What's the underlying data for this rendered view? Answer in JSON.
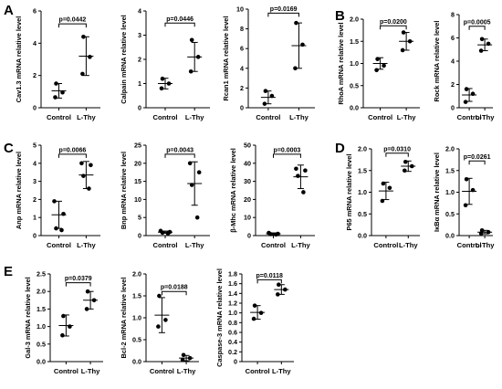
{
  "panel_letters": [
    "A",
    "B",
    "C",
    "D",
    "E"
  ],
  "chart_data": [
    {
      "type": "scatter",
      "panel": "A",
      "ylabel": "Cav1.3 mRNA relative level",
      "categories": [
        "Control",
        "L-Thy"
      ],
      "ylim": [
        0,
        6
      ],
      "yticks": [
        0,
        2,
        4,
        6
      ],
      "p_value": "p=0.0442",
      "series": [
        {
          "name": "Control",
          "points": [
            1.5,
            0.95,
            0.65
          ],
          "mean": 1.05,
          "sd": 0.45
        },
        {
          "name": "L-Thy",
          "points": [
            4.4,
            3.15,
            2.1
          ],
          "mean": 3.2,
          "sd": 1.2
        }
      ],
      "bracket_y": 5.2
    },
    {
      "type": "scatter",
      "panel": "A",
      "ylabel": "Calpain mRNA relative level",
      "categories": [
        "Control",
        "L-Thy"
      ],
      "ylim": [
        0,
        4
      ],
      "yticks": [
        0,
        1,
        2,
        3,
        4
      ],
      "p_value": "p=0.0446",
      "series": [
        {
          "name": "Control",
          "points": [
            1.2,
            1.0,
            0.8
          ],
          "mean": 1.0,
          "sd": 0.22
        },
        {
          "name": "L-Thy",
          "points": [
            2.8,
            2.1,
            1.5
          ],
          "mean": 2.1,
          "sd": 0.6
        }
      ],
      "bracket_y": 3.5
    },
    {
      "type": "scatter",
      "panel": "A",
      "ylabel": "Rcan1 mRNA relative level",
      "categories": [
        "Control",
        "L-Thy"
      ],
      "ylim": [
        0,
        10
      ],
      "yticks": [
        0,
        2,
        4,
        6,
        8,
        10
      ],
      "p_value": "p=0.0169",
      "series": [
        {
          "name": "Control",
          "points": [
            1.7,
            1.2,
            0.4
          ],
          "mean": 1.05,
          "sd": 0.65
        },
        {
          "name": "L-Thy",
          "points": [
            8.6,
            6.4,
            4.0
          ],
          "mean": 6.3,
          "sd": 2.3
        }
      ],
      "bracket_y": 9.6
    },
    {
      "type": "scatter",
      "panel": "B",
      "ylabel": "RhoA mRNA relative level",
      "categories": [
        "Control",
        "L-Thy"
      ],
      "ylim": [
        0,
        2.0
      ],
      "yticks": [
        0,
        0.5,
        1.0,
        1.5,
        2.0
      ],
      "ytick_labels": [
        "0.0",
        "0.5",
        "1.0",
        "1.5",
        "2.0"
      ],
      "p_value": "p=0.0200",
      "series": [
        {
          "name": "Control",
          "points": [
            1.1,
            0.95,
            0.85
          ],
          "mean": 1.0,
          "sd": 0.13
        },
        {
          "name": "L-Thy",
          "points": [
            1.7,
            1.5,
            1.3
          ],
          "mean": 1.5,
          "sd": 0.2
        }
      ],
      "bracket_y": 1.85
    },
    {
      "type": "scatter",
      "panel": "B",
      "ylabel": "Rock mRNA relative level",
      "categories": [
        "Control",
        "L-Thy"
      ],
      "ylim": [
        0,
        8
      ],
      "yticks": [
        0,
        2,
        4,
        6,
        8
      ],
      "p_value": "p=0.0005",
      "series": [
        {
          "name": "Control",
          "points": [
            1.6,
            1.2,
            0.5
          ],
          "mean": 1.1,
          "sd": 0.55
        },
        {
          "name": "L-Thy",
          "points": [
            5.9,
            5.5,
            4.9
          ],
          "mean": 5.4,
          "sd": 0.5
        }
      ],
      "bracket_y": 7.0
    },
    {
      "type": "scatter",
      "panel": "C",
      "ylabel": "Anp mRNA relative level",
      "categories": [
        "Control",
        "L-Thy"
      ],
      "ylim": [
        0,
        5
      ],
      "yticks": [
        0,
        1,
        2,
        3,
        4,
        5
      ],
      "p_value": "p=0.0066",
      "series": [
        {
          "name": "Control",
          "points": [
            1.9,
            1.2,
            0.4,
            0.3
          ],
          "mean": 1.15,
          "sd": 0.75
        },
        {
          "name": "L-Thy",
          "points": [
            4.0,
            3.9,
            3.3,
            2.6
          ],
          "mean": 3.35,
          "sd": 0.75
        }
      ],
      "bracket_y": 4.5
    },
    {
      "type": "scatter",
      "panel": "C",
      "ylabel": "Bnp mRNA relative level",
      "categories": [
        "Control",
        "L-Thy"
      ],
      "ylim": [
        0,
        25
      ],
      "yticks": [
        0,
        5,
        10,
        15,
        20,
        25
      ],
      "p_value": "p=0.0043",
      "series": [
        {
          "name": "Control",
          "points": [
            1.3,
            1.0,
            0.8,
            0.6
          ],
          "mean": 0.95,
          "sd": 0.3
        },
        {
          "name": "L-Thy",
          "points": [
            20.0,
            17.5,
            14.0,
            5.0
          ],
          "mean": 14.4,
          "sd": 6.0
        }
      ],
      "bracket_y": 22.5
    },
    {
      "type": "scatter",
      "panel": "C",
      "ylabel": "β-Mhc mRNA relative level",
      "categories": [
        "Control",
        "L-Thy"
      ],
      "ylim": [
        0,
        50
      ],
      "yticks": [
        0,
        10,
        20,
        30,
        40,
        50
      ],
      "p_value": "p=0.0003",
      "series": [
        {
          "name": "Control",
          "points": [
            1.5,
            1.0,
            0.8,
            0.6
          ],
          "mean": 1.0,
          "sd": 0.5
        },
        {
          "name": "L-Thy",
          "points": [
            37,
            36,
            33,
            24
          ],
          "mean": 32.5,
          "sd": 6.5
        }
      ],
      "bracket_y": 45
    },
    {
      "type": "scatter",
      "panel": "D",
      "ylabel": "P65 mRNA relative level",
      "categories": [
        "Control",
        "L-Thy"
      ],
      "ylim": [
        0,
        2.0
      ],
      "yticks": [
        0,
        0.5,
        1.0,
        1.5,
        2.0
      ],
      "ytick_labels": [
        "0.0",
        "0.5",
        "1.0",
        "1.5",
        "2.0"
      ],
      "p_value": "p=0.0310",
      "series": [
        {
          "name": "Control",
          "points": [
            1.2,
            1.1,
            0.8
          ],
          "mean": 1.03,
          "sd": 0.2
        },
        {
          "name": "L-Thy",
          "points": [
            1.7,
            1.6,
            1.5
          ],
          "mean": 1.6,
          "sd": 0.12
        }
      ],
      "bracket_y": 1.9
    },
    {
      "type": "scatter",
      "panel": "D",
      "ylabel": "IκBα mRNA relative level",
      "categories": [
        "Control",
        "L-Thy"
      ],
      "ylim": [
        0,
        2.0
      ],
      "yticks": [
        0,
        0.5,
        1.0,
        1.5,
        2.0
      ],
      "ytick_labels": [
        "0.0",
        "0.5",
        "1.0",
        "1.5",
        "2.0"
      ],
      "p_value": "p=0.0261",
      "series": [
        {
          "name": "Control",
          "points": [
            1.3,
            1.05,
            0.7
          ],
          "mean": 1.02,
          "sd": 0.3
        },
        {
          "name": "L-Thy",
          "points": [
            0.12,
            0.08,
            0.05
          ],
          "mean": 0.08,
          "sd": 0.04
        }
      ],
      "bracket_y": 1.72
    },
    {
      "type": "scatter",
      "panel": "E",
      "ylabel": "Gal-3 mRNA relative level",
      "categories": [
        "Control",
        "L-Thy"
      ],
      "ylim": [
        0,
        2.5
      ],
      "yticks": [
        0,
        0.5,
        1.0,
        1.5,
        2.0,
        2.5
      ],
      "ytick_labels": [
        "0.0",
        "0.5",
        "1.0",
        "1.5",
        "2.0",
        "2.5"
      ],
      "p_value": "p=0.0379",
      "series": [
        {
          "name": "Control",
          "points": [
            1.3,
            1.0,
            0.75
          ],
          "mean": 1.03,
          "sd": 0.3
        },
        {
          "name": "L-Thy",
          "points": [
            2.0,
            1.75,
            1.5
          ],
          "mean": 1.75,
          "sd": 0.25
        }
      ],
      "bracket_y": 2.25
    },
    {
      "type": "scatter",
      "panel": "E",
      "ylabel": "Bcl-2 mRNA relative level",
      "categories": [
        "Control",
        "L-Thy"
      ],
      "ylim": [
        0,
        2.0
      ],
      "yticks": [
        0,
        0.5,
        1.0,
        1.5,
        2.0
      ],
      "ytick_labels": [
        "0.0",
        "0.5",
        "1.0",
        "1.5",
        "2.0"
      ],
      "p_value": "p=0.0188",
      "series": [
        {
          "name": "Control",
          "points": [
            1.5,
            0.95,
            0.8
          ],
          "mean": 1.06,
          "sd": 0.4
        },
        {
          "name": "L-Thy",
          "points": [
            0.15,
            0.08,
            0.04
          ],
          "mean": 0.08,
          "sd": 0.06
        }
      ],
      "bracket_y": 1.6
    },
    {
      "type": "scatter",
      "panel": "E",
      "ylabel": "Caspase-3 mRNA relative level",
      "categories": [
        "Control",
        "L-Thy"
      ],
      "ylim": [
        0,
        1.8
      ],
      "yticks": [
        0,
        0.2,
        0.4,
        0.6,
        0.8,
        1.0,
        1.2,
        1.4,
        1.6,
        1.8
      ],
      "ytick_labels": [
        "0",
        "0.2",
        "0.4",
        "0.6",
        "0.8",
        "1.0",
        "1.2",
        "1.4",
        "1.6",
        "1.8"
      ],
      "p_value": "p=0.0118",
      "series": [
        {
          "name": "Control",
          "points": [
            1.15,
            1.0,
            0.88
          ],
          "mean": 1.01,
          "sd": 0.14
        },
        {
          "name": "L-Thy",
          "points": [
            1.58,
            1.48,
            1.38
          ],
          "mean": 1.48,
          "sd": 0.1
        }
      ],
      "bracket_y": 1.68
    }
  ]
}
